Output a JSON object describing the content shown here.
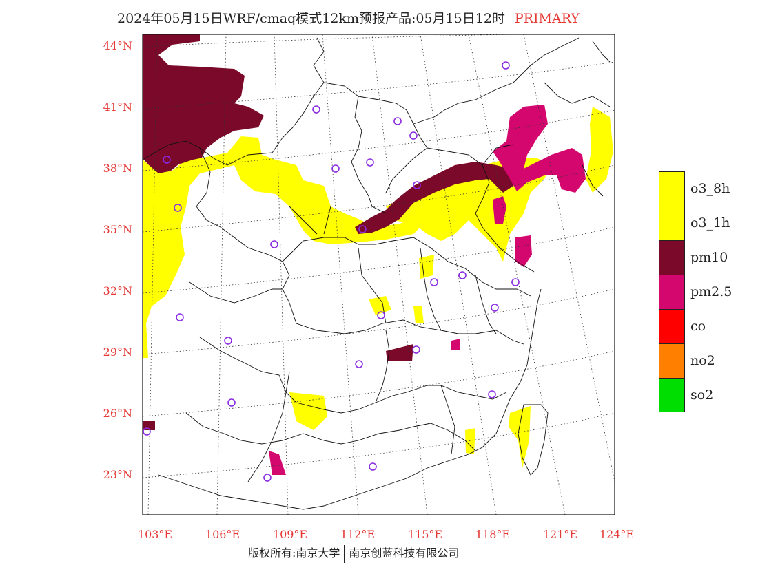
{
  "title": {
    "main": "2024年05月15日WRF/cmaq模式12km预报产品:05月15日12时",
    "tag": "PRIMARY"
  },
  "axes": {
    "lat_labels": [
      "44°N",
      "41°N",
      "38°N",
      "35°N",
      "32°N",
      "29°N",
      "26°N",
      "23°N"
    ],
    "lon_labels": [
      "103°E",
      "106°E",
      "109°E",
      "112°E",
      "115°E",
      "118°E",
      "121°E",
      "124°E"
    ]
  },
  "legend": [
    {
      "label": "o3_8h",
      "color": "#ffff00"
    },
    {
      "label": "o3_1h",
      "color": "#ffff00"
    },
    {
      "label": "pm10",
      "color": "#7b0a2a"
    },
    {
      "label": "pm2.5",
      "color": "#d4076e"
    },
    {
      "label": "co",
      "color": "#ff0000"
    },
    {
      "label": "no2",
      "color": "#ff7f00"
    },
    {
      "label": "so2",
      "color": "#00dd00"
    }
  ],
  "colors": {
    "o3": "#ffff00",
    "pm10": "#7b0a2a",
    "pm25": "#d4076e",
    "station": "#8a2be2",
    "axis_text": "#e53935"
  },
  "credits": {
    "left": "版权所有:南京大学",
    "right": "南京创蓝科技有限公司"
  }
}
